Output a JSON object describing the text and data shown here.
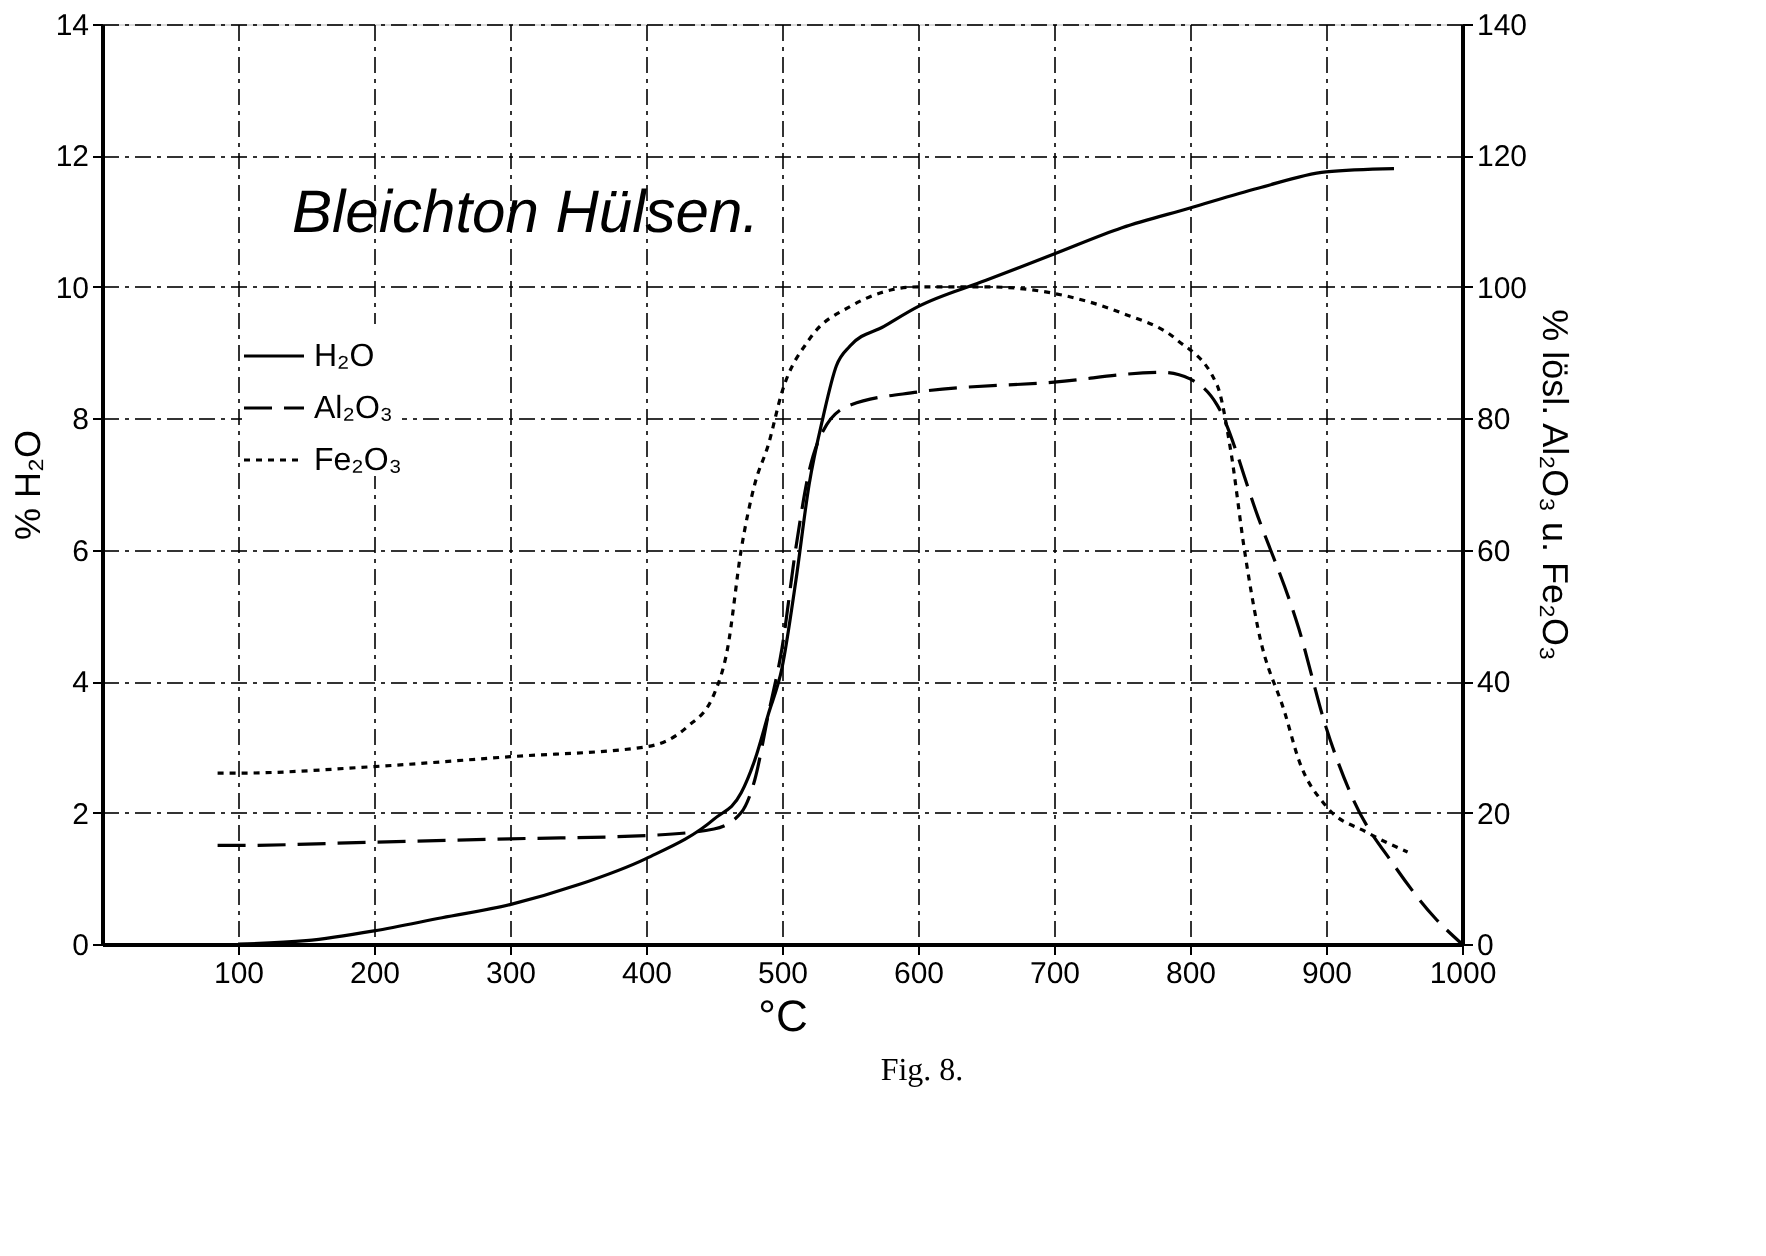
{
  "chart_data": {
    "type": "line",
    "xlabel": "°C",
    "ylabel": "% H₂O",
    "y2label": "% lösl. Al₂O₃ u. Fe₂O₃",
    "annotations": [
      "Bleichton Hülsen.",
      "Fig. 8."
    ],
    "xlim": [
      0,
      1000
    ],
    "xticks": [
      100,
      200,
      300,
      400,
      500,
      600,
      700,
      800,
      900,
      1000
    ],
    "ylim": [
      0,
      14
    ],
    "yticks": [
      0,
      2,
      4,
      6,
      8,
      10,
      12,
      14
    ],
    "y2lim": [
      0,
      140
    ],
    "y2ticks": [
      0,
      20,
      40,
      60,
      80,
      100,
      120,
      140
    ],
    "grid": true,
    "legend": "top left",
    "marker": "none",
    "series": [
      {
        "name": "H₂O",
        "color": "#000000",
        "line_style": "solid",
        "x": [
          100,
          150,
          200,
          250,
          300,
          350,
          400,
          450,
          470,
          480,
          490,
          500,
          510,
          520,
          530,
          540,
          550,
          575,
          600,
          650,
          700,
          750,
          800,
          850,
          900,
          950
        ],
        "values": [
          0,
          0.05,
          0.2,
          0.4,
          0.6,
          0.9,
          1.3,
          1.9,
          2.3,
          2.8,
          3.5,
          4.2,
          5.5,
          7,
          8,
          8.8,
          9.1,
          9.4,
          9.7,
          10.1,
          10.5,
          10.9,
          11.2,
          11.5,
          11.75,
          11.8
        ]
      },
      {
        "name": "Al₂O₃",
        "color": "#000000",
        "line_style": "dashed",
        "axis": "y2",
        "x": [
          85,
          100,
          200,
          300,
          400,
          450,
          470,
          480,
          490,
          500,
          510,
          520,
          530,
          550,
          600,
          700,
          780,
          800,
          820,
          850,
          880,
          900,
          920,
          950,
          980,
          1000
        ],
        "values": [
          15,
          15,
          15.5,
          16,
          16.5,
          17.5,
          20,
          25,
          35,
          45,
          60,
          72,
          78,
          82,
          84,
          85.5,
          87,
          86,
          82,
          65,
          48,
          33,
          22,
          12,
          4,
          0
        ]
      },
      {
        "name": "Fe₂O₃",
        "color": "#000000",
        "line_style": "dotted",
        "axis": "y2",
        "x": [
          85,
          100,
          200,
          300,
          400,
          430,
          450,
          460,
          470,
          480,
          490,
          500,
          520,
          550,
          600,
          650,
          700,
          750,
          790,
          820,
          830,
          840,
          850,
          870,
          880,
          900,
          930,
          960
        ],
        "values": [
          26,
          26,
          27,
          28.5,
          30,
          33,
          38,
          45,
          60,
          70,
          76,
          84,
          92,
          97,
          100,
          100,
          99,
          96,
          92,
          85,
          75,
          60,
          48,
          35,
          28,
          21,
          17,
          14
        ]
      }
    ]
  }
}
